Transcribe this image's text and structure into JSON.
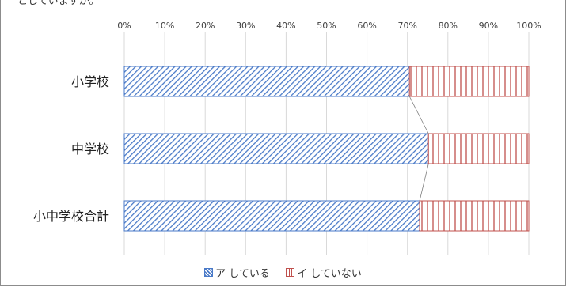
{
  "caption": "としていますか。",
  "chart_data": {
    "type": "bar",
    "orientation": "horizontal",
    "stacked": "percent",
    "categories": [
      "小学校",
      "中学校",
      "小中学校合計"
    ],
    "series": [
      {
        "name": "ア している",
        "values": [
          70.5,
          75.2,
          73.0
        ],
        "color": "#4a7ac8",
        "pattern": "diagonal"
      },
      {
        "name": "イ していない",
        "values": [
          29.5,
          24.8,
          27.0
        ],
        "color": "#c0504d",
        "pattern": "vertical"
      }
    ],
    "x_ticks": [
      "0%",
      "10%",
      "20%",
      "30%",
      "40%",
      "50%",
      "60%",
      "70%",
      "80%",
      "90%",
      "100%"
    ],
    "xlim": [
      0,
      100
    ],
    "grid": true,
    "legend_position": "bottom",
    "series_lines": true
  }
}
